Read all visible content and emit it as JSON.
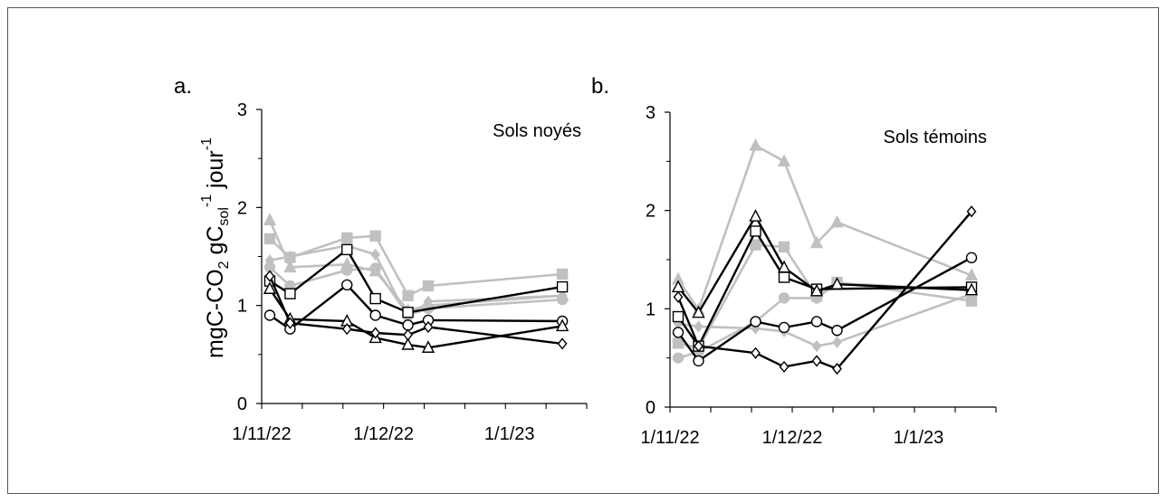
{
  "ylabel_parts": {
    "main1": "mgC-CO",
    "sub1": "2",
    "main2": " gC",
    "sub2": "sol",
    "sup1": "-1",
    "main3": " jour",
    "sup2": "-1"
  },
  "colors": {
    "dark": "#000000",
    "light": "#c0c0c0",
    "fill_open": "#ffffff"
  },
  "chart_data": [
    {
      "type": "line",
      "panel_label": "a.",
      "title": "Sols noyés",
      "x_ticks": [
        "1/11/22",
        "1/12/22",
        "1/1/23"
      ],
      "y_ticks": [
        "0",
        "1",
        "2",
        "3"
      ],
      "xlim": [
        "2022-11-01",
        "2023-01-20"
      ],
      "ylim": [
        0,
        3
      ],
      "series": [
        {
          "color": "dark",
          "marker": "square-open",
          "x": [
            "2022-11-03",
            "2022-11-08",
            "2022-11-22",
            "2022-11-29",
            "2022-12-07",
            "2023-01-14"
          ],
          "y": [
            1.25,
            1.12,
            1.57,
            1.07,
            0.93,
            1.19
          ]
        },
        {
          "color": "dark",
          "marker": "circle-open",
          "x": [
            "2022-11-03",
            "2022-11-08",
            "2022-11-22",
            "2022-11-29",
            "2022-12-07",
            "2022-12-12",
            "2023-01-14"
          ],
          "y": [
            0.9,
            0.76,
            1.21,
            0.9,
            0.8,
            0.85,
            0.84
          ]
        },
        {
          "color": "dark",
          "marker": "triangle-open",
          "x": [
            "2022-11-03",
            "2022-11-08",
            "2022-11-22",
            "2022-11-29",
            "2022-12-07",
            "2022-12-12",
            "2023-01-14"
          ],
          "y": [
            1.17,
            0.86,
            0.84,
            0.67,
            0.6,
            0.57,
            0.79
          ]
        },
        {
          "color": "dark",
          "marker": "diamond-open",
          "x": [
            "2022-11-03",
            "2022-11-08",
            "2022-11-22",
            "2022-11-29",
            "2022-12-07",
            "2022-12-12",
            "2023-01-14"
          ],
          "y": [
            1.3,
            0.82,
            0.76,
            0.72,
            0.7,
            0.78,
            0.61
          ]
        },
        {
          "color": "light",
          "marker": "square",
          "x": [
            "2022-11-03",
            "2022-11-08",
            "2022-11-22",
            "2022-11-29",
            "2022-12-07",
            "2022-12-12",
            "2023-01-14"
          ],
          "y": [
            1.68,
            1.49,
            1.69,
            1.71,
            1.1,
            1.2,
            1.32
          ]
        },
        {
          "color": "light",
          "marker": "triangle",
          "x": [
            "2022-11-03",
            "2022-11-08",
            "2022-11-22",
            "2022-11-29",
            "2022-12-07",
            "2022-12-12",
            "2023-01-14"
          ],
          "y": [
            1.87,
            1.39,
            1.42,
            1.35,
            0.95,
            1.0,
            1.1
          ]
        },
        {
          "color": "light",
          "marker": "diamond",
          "x": [
            "2022-11-03",
            "2022-11-08",
            "2022-11-22",
            "2022-11-29",
            "2022-12-07",
            "2022-12-12",
            "2023-01-14"
          ],
          "y": [
            1.46,
            1.5,
            1.61,
            1.52,
            0.87,
            1.04,
            1.1
          ]
        },
        {
          "color": "light",
          "marker": "circle",
          "x": [
            "2022-11-03",
            "2022-11-08",
            "2022-11-22",
            "2022-11-29",
            "2022-12-07",
            "2022-12-12",
            "2023-01-14"
          ],
          "y": [
            1.39,
            1.2,
            1.36,
            1.38,
            0.9,
            0.97,
            1.06
          ]
        }
      ]
    },
    {
      "type": "line",
      "panel_label": "b.",
      "title": "Sols témoins",
      "x_ticks": [
        "1/11/22",
        "1/12/22",
        "1/1/23"
      ],
      "y_ticks": [
        "0",
        "1",
        "2",
        "3"
      ],
      "xlim": [
        "2022-11-01",
        "2023-01-20"
      ],
      "ylim": [
        0,
        3
      ],
      "series": [
        {
          "color": "dark",
          "marker": "square-open",
          "x": [
            "2022-11-03",
            "2022-11-08",
            "2022-11-22",
            "2022-11-29",
            "2022-12-07",
            "2023-01-14"
          ],
          "y": [
            0.92,
            0.62,
            1.79,
            1.32,
            1.2,
            1.22
          ]
        },
        {
          "color": "dark",
          "marker": "circle-open",
          "x": [
            "2022-11-03",
            "2022-11-08",
            "2022-11-22",
            "2022-11-29",
            "2022-12-07",
            "2022-12-12",
            "2023-01-14"
          ],
          "y": [
            0.76,
            0.47,
            0.87,
            0.81,
            0.87,
            0.78,
            1.52
          ]
        },
        {
          "color": "dark",
          "marker": "triangle-open",
          "x": [
            "2022-11-03",
            "2022-11-08",
            "2022-11-22",
            "2022-11-29",
            "2022-12-07",
            "2022-12-12",
            "2023-01-14"
          ],
          "y": [
            1.22,
            0.96,
            1.94,
            1.42,
            1.18,
            1.25,
            1.19
          ]
        },
        {
          "color": "dark",
          "marker": "diamond-open",
          "x": [
            "2022-11-03",
            "2022-11-08",
            "2022-11-22",
            "2022-11-29",
            "2022-12-07",
            "2022-12-12",
            "2023-01-14"
          ],
          "y": [
            1.12,
            0.62,
            0.55,
            0.41,
            0.47,
            0.39,
            1.99
          ]
        },
        {
          "color": "light",
          "marker": "square",
          "x": [
            "2022-11-03",
            "2022-11-08",
            "2022-11-22",
            "2022-11-29",
            "2022-12-07",
            "2022-12-12",
            "2023-01-14"
          ],
          "y": [
            0.65,
            0.6,
            1.65,
            1.63,
            1.13,
            1.27,
            1.08
          ]
        },
        {
          "color": "light",
          "marker": "triangle",
          "x": [
            "2022-11-03",
            "2022-11-08",
            "2022-11-22",
            "2022-11-29",
            "2022-12-07",
            "2022-12-12",
            "2023-01-14"
          ],
          "y": [
            1.3,
            0.99,
            2.66,
            2.5,
            1.67,
            1.88,
            1.34
          ]
        },
        {
          "color": "light",
          "marker": "diamond",
          "x": [
            "2022-11-03",
            "2022-11-08",
            "2022-11-22",
            "2022-11-29",
            "2022-12-07",
            "2022-12-12",
            "2023-01-14"
          ],
          "y": [
            0.85,
            0.82,
            0.8,
            0.77,
            0.62,
            0.66,
            1.15
          ]
        },
        {
          "color": "light",
          "marker": "circle",
          "x": [
            "2022-11-03",
            "2022-11-08",
            "2022-11-22",
            "2022-11-29",
            "2022-12-07",
            "2022-12-12",
            "2023-01-14"
          ],
          "y": [
            0.5,
            0.56,
            0.87,
            1.11,
            1.11,
            1.26,
            1.19
          ]
        }
      ]
    }
  ]
}
